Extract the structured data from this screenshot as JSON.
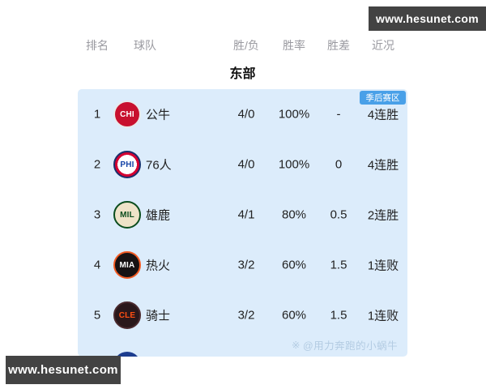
{
  "site_badges": {
    "top_right": "www.hesunet.com",
    "bottom_left": "www.hesunet.com"
  },
  "table": {
    "headers": [
      "排名",
      "球队",
      "胜/负",
      "胜率",
      "胜差",
      "近况"
    ],
    "section_title": "东部",
    "playoff_zone_label": "季后赛区",
    "rows": [
      {
        "rank": "1",
        "abbr": "CHI",
        "team": "公牛",
        "wl": "4/0",
        "pct": "100%",
        "gb": "-",
        "streak": "4连胜",
        "logo": {
          "bg": "#c8102e",
          "ring": "#e9e9e9",
          "text": "#ffffff"
        }
      },
      {
        "rank": "2",
        "abbr": "PHI",
        "team": "76人",
        "wl": "4/0",
        "pct": "100%",
        "gb": "0",
        "streak": "4连胜",
        "logo": {
          "bg": "#d50032",
          "inner": "#ffffff",
          "ring": "#1a2f6b",
          "text": "#1745a8"
        }
      },
      {
        "rank": "3",
        "abbr": "MIL",
        "team": "雄鹿",
        "wl": "4/1",
        "pct": "80%",
        "gb": "0.5",
        "streak": "2连胜",
        "logo": {
          "bg": "#efe3c8",
          "ring": "#0b4d1e",
          "text": "#0b4d1e"
        }
      },
      {
        "rank": "4",
        "abbr": "MIA",
        "team": "热火",
        "wl": "3/2",
        "pct": "60%",
        "gb": "1.5",
        "streak": "1连败",
        "logo": {
          "bg": "#161213",
          "ring": "#f05a23",
          "text": "#ffffff"
        }
      },
      {
        "rank": "5",
        "abbr": "CLE",
        "team": "骑士",
        "wl": "3/2",
        "pct": "60%",
        "gb": "1.5",
        "streak": "1连败",
        "logo": {
          "bg": "#2a181b",
          "ring": "#4a2a2e",
          "text": "#ff4f12"
        }
      }
    ],
    "partial_next_logo_color": "#1c3d8f"
  },
  "watermark": {
    "icon": "※",
    "text": "@用力奔跑的小蜗牛"
  },
  "colors": {
    "panel_bg": "#dcecfb",
    "playoff_badge": "#49a0e8",
    "site_badge_bg": "#434343",
    "header_text": "#9a9aa0",
    "body_text": "#222222"
  }
}
